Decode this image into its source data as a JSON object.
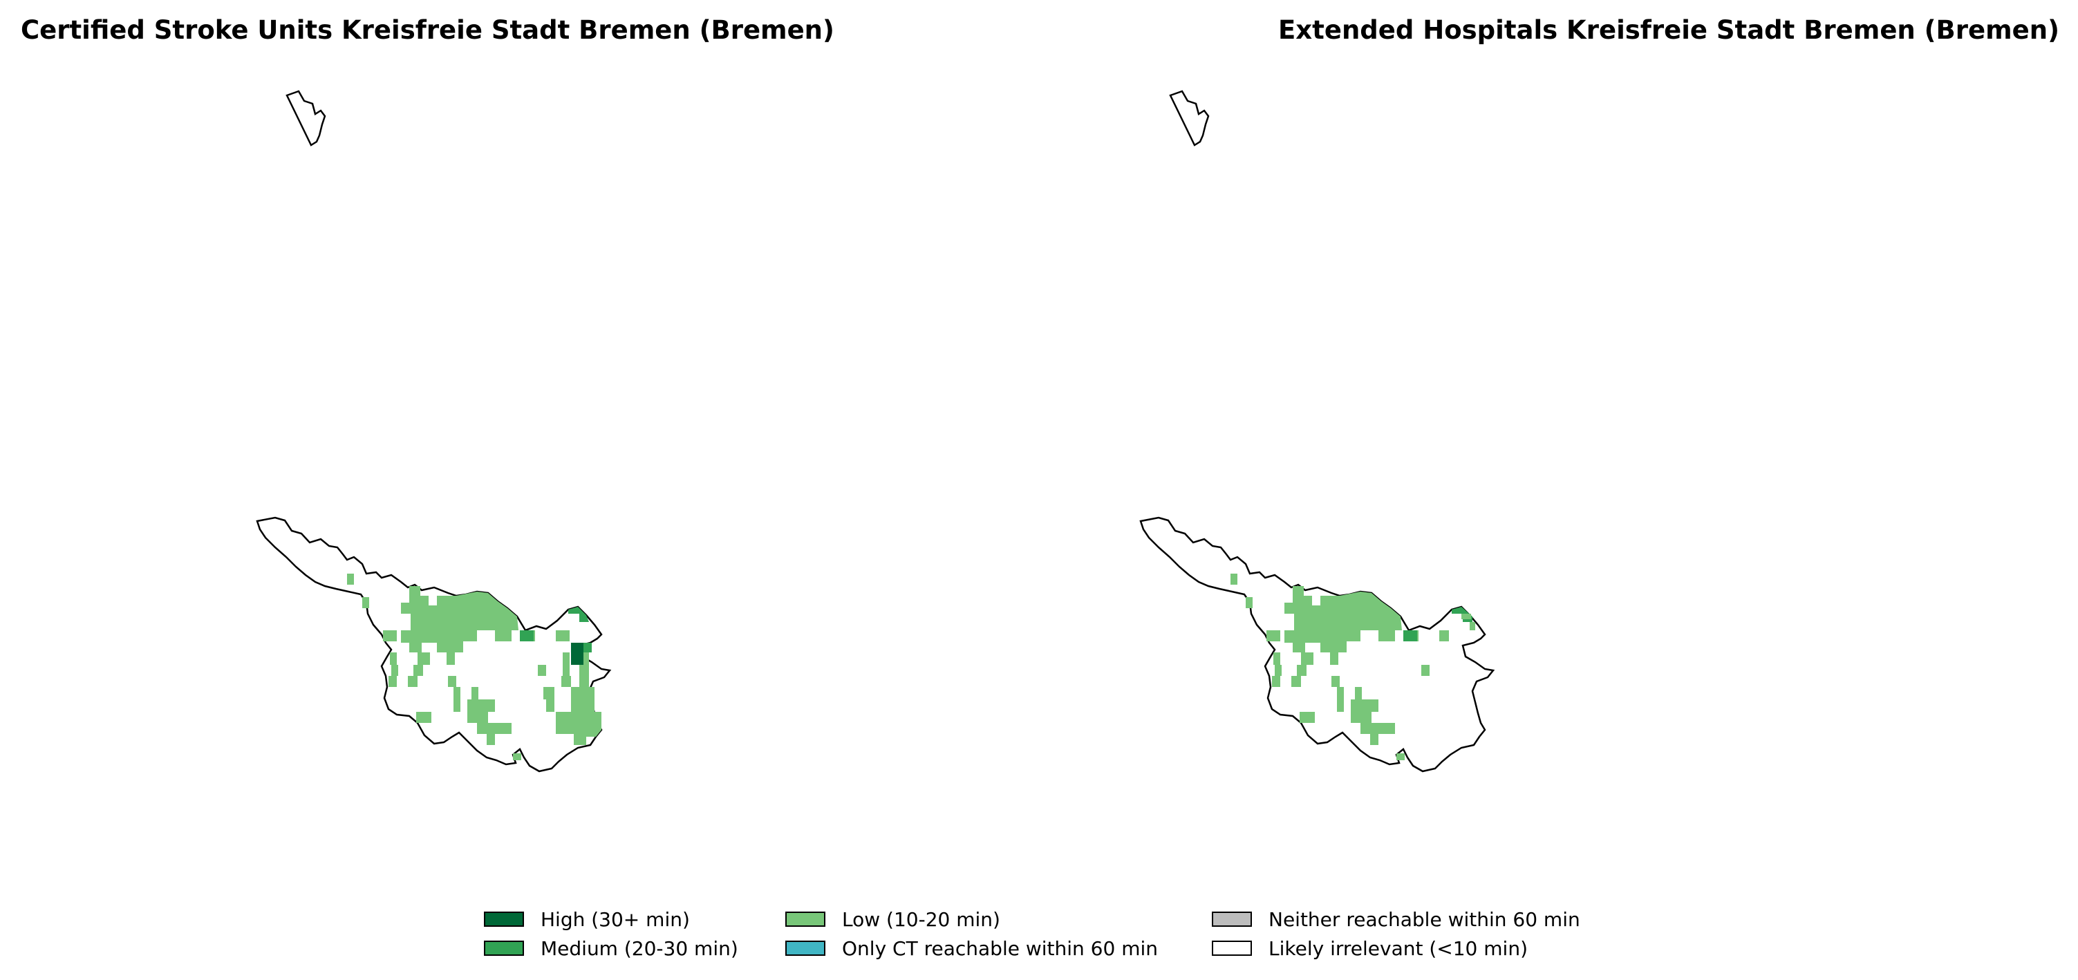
{
  "panels": [
    {
      "title": "Certified Stroke Units Kreisfreie Stadt Bremen (Bremen)",
      "cell_levels": [
        "low",
        "low",
        "low",
        "low",
        "low",
        "low",
        "medium",
        "high",
        "medium",
        "low"
      ]
    },
    {
      "title": "Extended Hospitals Kreisfreie Stadt Bremen (Bremen)",
      "cell_levels": [
        "low",
        "low",
        "low",
        "low",
        "low",
        "low",
        "medium",
        "medium",
        "low",
        "low"
      ]
    }
  ],
  "legend": {
    "items": [
      {
        "key": "high",
        "label": "High (30+ min)",
        "color": "#006837"
      },
      {
        "key": "medium",
        "label": "Medium (20-30 min)",
        "color": "#31a354"
      },
      {
        "key": "low",
        "label": "Low (10-20 min)",
        "color": "#78c679"
      },
      {
        "key": "ct",
        "label": "Only CT reachable within 60 min",
        "color": "#41b6c4"
      },
      {
        "key": "neither",
        "label": "Neither reachable within 60 min",
        "color": "#bdbdbd"
      },
      {
        "key": "irrelevant",
        "label": "Likely irrelevant (<10 min)",
        "color": "#ffffff"
      }
    ]
  }
}
